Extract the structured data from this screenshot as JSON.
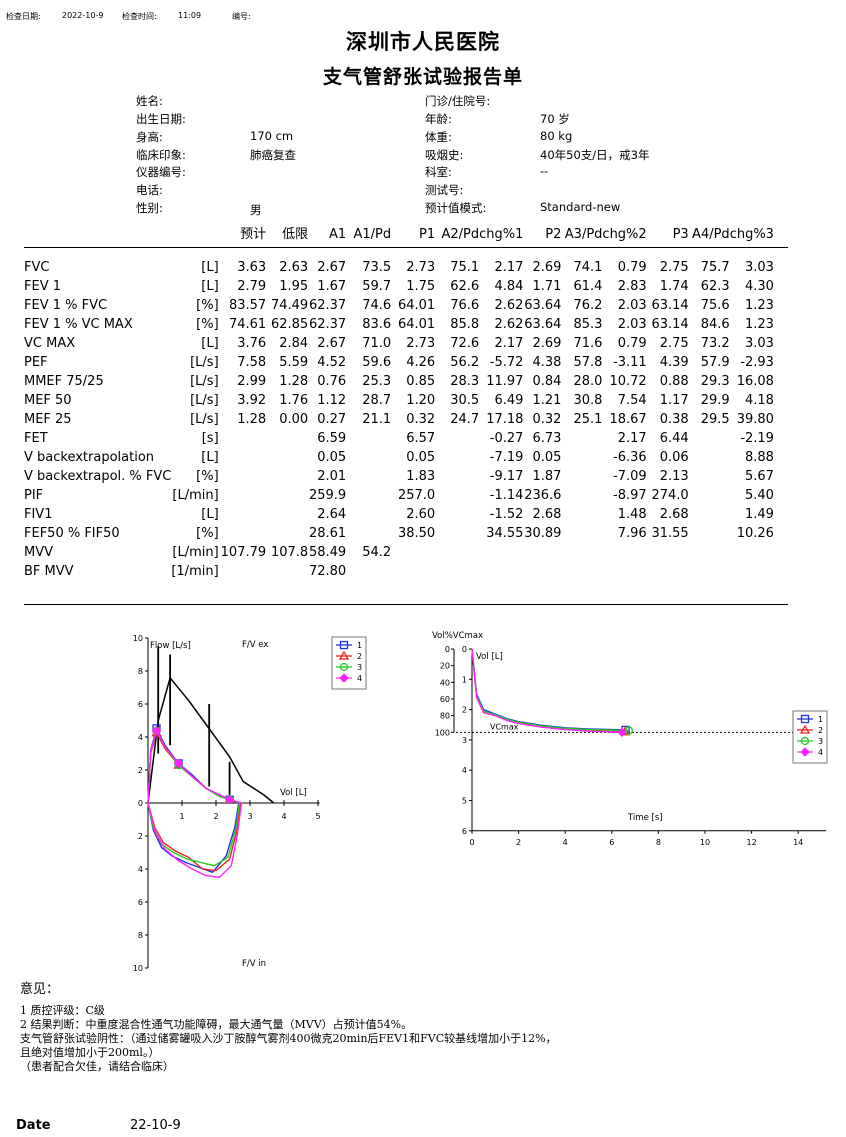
{
  "header": {
    "check_date_label": "检查日期:",
    "check_date": "2022-10-9",
    "check_time_label": "检查时间:",
    "check_time": "11:09",
    "number_label": "编号:"
  },
  "hospital": "深圳市人民医院",
  "report_title": "支气管舒张试验报告单",
  "patient": {
    "left": [
      {
        "label": "姓名:",
        "value": ""
      },
      {
        "label": "出生日期:",
        "value": ""
      },
      {
        "label": "身高:",
        "value": "170 cm"
      },
      {
        "label": "临床印象:",
        "value": "肺癌复查"
      },
      {
        "label": "仪器编号:",
        "value": ""
      },
      {
        "label": "电话:",
        "value": ""
      },
      {
        "label": "性别:",
        "value": "男"
      }
    ],
    "right": [
      {
        "label": "门诊/住院号:",
        "value": ""
      },
      {
        "label": "年龄:",
        "value": "70 岁"
      },
      {
        "label": "体重:",
        "value": "80 kg"
      },
      {
        "label": "吸烟史:",
        "value": "40年50支/日，戒3年"
      },
      {
        "label": "科室:",
        "value": "--"
      },
      {
        "label": "测试号:",
        "value": ""
      },
      {
        "label": "预计值模式:",
        "value": "Standard-new"
      }
    ]
  },
  "table": {
    "columns": [
      "预计",
      "低限",
      "A1",
      "A1/Pd",
      "P1",
      "A2/Pd",
      "chg%1",
      "P2",
      "A3/Pd",
      "chg%2",
      "P3",
      "A4/Pd",
      "chg%3"
    ],
    "rows": [
      {
        "name": "FVC",
        "unit": "[L]",
        "v": [
          "3.63",
          "2.63",
          "2.67",
          "73.5",
          "2.73",
          "75.1",
          "2.17",
          "2.69",
          "74.1",
          "0.79",
          "2.75",
          "75.7",
          "3.03"
        ]
      },
      {
        "name": "FEV 1",
        "unit": "[L]",
        "v": [
          "2.79",
          "1.95",
          "1.67",
          "59.7",
          "1.75",
          "62.6",
          "4.84",
          "1.71",
          "61.4",
          "2.83",
          "1.74",
          "62.3",
          "4.30"
        ]
      },
      {
        "name": "FEV 1 % FVC",
        "unit": "[%]",
        "v": [
          "83.57",
          "74.49",
          "62.37",
          "74.6",
          "64.01",
          "76.6",
          "2.62",
          "63.64",
          "76.2",
          "2.03",
          "63.14",
          "75.6",
          "1.23"
        ]
      },
      {
        "name": "FEV 1 % VC MAX",
        "unit": "[%]",
        "v": [
          "74.61",
          "62.85",
          "62.37",
          "83.6",
          "64.01",
          "85.8",
          "2.62",
          "63.64",
          "85.3",
          "2.03",
          "63.14",
          "84.6",
          "1.23"
        ]
      },
      {
        "name": "VC MAX",
        "unit": "[L]",
        "v": [
          "3.76",
          "2.84",
          "2.67",
          "71.0",
          "2.73",
          "72.6",
          "2.17",
          "2.69",
          "71.6",
          "0.79",
          "2.75",
          "73.2",
          "3.03"
        ]
      },
      {
        "name": "PEF",
        "unit": "[L/s]",
        "v": [
          "7.58",
          "5.59",
          "4.52",
          "59.6",
          "4.26",
          "56.2",
          "-5.72",
          "4.38",
          "57.8",
          "-3.11",
          "4.39",
          "57.9",
          "-2.93"
        ]
      },
      {
        "name": "MMEF 75/25",
        "unit": "[L/s]",
        "v": [
          "2.99",
          "1.28",
          "0.76",
          "25.3",
          "0.85",
          "28.3",
          "11.97",
          "0.84",
          "28.0",
          "10.72",
          "0.88",
          "29.3",
          "16.08"
        ]
      },
      {
        "name": "MEF 50",
        "unit": "[L/s]",
        "v": [
          "3.92",
          "1.76",
          "1.12",
          "28.7",
          "1.20",
          "30.5",
          "6.49",
          "1.21",
          "30.8",
          "7.54",
          "1.17",
          "29.9",
          "4.18"
        ]
      },
      {
        "name": "MEF 25",
        "unit": "[L/s]",
        "v": [
          "1.28",
          "0.00",
          "0.27",
          "21.1",
          "0.32",
          "24.7",
          "17.18",
          "0.32",
          "25.1",
          "18.67",
          "0.38",
          "29.5",
          "39.80"
        ]
      },
      {
        "name": "FET",
        "unit": "[s]",
        "v": [
          "",
          "",
          "6.59",
          "",
          "6.57",
          "",
          "-0.27",
          "6.73",
          "",
          "2.17",
          "6.44",
          "",
          "-2.19"
        ]
      },
      {
        "name": "V backextrapolation",
        "unit": "[L]",
        "v": [
          "",
          "",
          "0.05",
          "",
          "0.05",
          "",
          "-7.19",
          "0.05",
          "",
          "-6.36",
          "0.06",
          "",
          "8.88"
        ]
      },
      {
        "name": "V backextrapol. % FVC",
        "unit": "[%]",
        "v": [
          "",
          "",
          "2.01",
          "",
          "1.83",
          "",
          "-9.17",
          "1.87",
          "",
          "-7.09",
          "2.13",
          "",
          "5.67"
        ]
      },
      {
        "name": "PIF",
        "unit": "[L/min]",
        "v": [
          "",
          "",
          "259.9",
          "",
          "257.0",
          "",
          "-1.14",
          "236.6",
          "",
          "-8.97",
          "274.0",
          "",
          "5.40"
        ]
      },
      {
        "name": "FIV1",
        "unit": "[L]",
        "v": [
          "",
          "",
          "2.64",
          "",
          "2.60",
          "",
          "-1.52",
          "2.68",
          "",
          "1.48",
          "2.68",
          "",
          "1.49"
        ]
      },
      {
        "name": "FEF50 % FIF50",
        "unit": "[%]",
        "v": [
          "",
          "",
          "28.61",
          "",
          "38.50",
          "",
          "34.55",
          "30.89",
          "",
          "7.96",
          "31.55",
          "",
          "10.26"
        ]
      },
      {
        "name": "MVV",
        "unit": "[L/min]",
        "v": [
          "107.79",
          "107.8",
          "58.49",
          "54.2",
          "",
          "",
          "",
          "",
          "",
          "",
          "",
          "",
          ""
        ]
      },
      {
        "name": "BF MVV",
        "unit": "[1/min]",
        "v": [
          "",
          "",
          "72.80",
          "",
          "",
          "",
          "",
          "",
          "",
          "",
          "",
          "",
          ""
        ]
      }
    ]
  },
  "chart_data": [
    {
      "type": "line",
      "title": "F/V ex",
      "bottom_label": "F/V in",
      "xlabel": "Vol [L]",
      "ylabel": "Flow [L/s]",
      "xlim": [
        0,
        5
      ],
      "ylim": [
        -10,
        10
      ],
      "x_ticks": [
        "1",
        "2",
        "3",
        "4",
        "5"
      ],
      "y_ticks": [
        "10",
        "8",
        "6",
        "4",
        "2",
        "0",
        "2",
        "4",
        "6",
        "8",
        "10"
      ],
      "legend": [
        "1",
        "2",
        "3",
        "4"
      ],
      "colors": [
        "#2233dd",
        "#ee2222",
        "#22cc22",
        "#ff22ff"
      ],
      "predicted": {
        "x": [
          0.0,
          0.3,
          0.65,
          1.2,
          1.8,
          2.4,
          2.8,
          3.1,
          3.4,
          3.7
        ],
        "y": [
          0,
          5.0,
          7.58,
          6.2,
          4.5,
          2.8,
          1.3,
          0.9,
          0.5,
          0
        ]
      },
      "error_bars": [
        {
          "x": 0.3,
          "ymin": 3.0,
          "ymax": 9.5
        },
        {
          "x": 0.65,
          "ymin": 3.5,
          "ymax": 9.0
        },
        {
          "x": 1.8,
          "ymin": 1.0,
          "ymax": 6.0
        },
        {
          "x": 2.4,
          "ymin": 0.0,
          "ymax": 2.5
        }
      ],
      "expiratory": [
        {
          "name": "1",
          "x": [
            0,
            0.08,
            0.25,
            0.5,
            0.9,
            1.3,
            1.7,
            2.1,
            2.4,
            2.67
          ],
          "y": [
            0,
            3.2,
            4.52,
            3.5,
            2.4,
            1.7,
            0.9,
            0.5,
            0.2,
            0
          ]
        },
        {
          "name": "2",
          "x": [
            0,
            0.08,
            0.25,
            0.5,
            0.9,
            1.3,
            1.7,
            2.1,
            2.4,
            2.73
          ],
          "y": [
            0,
            3.0,
            4.26,
            3.3,
            2.3,
            1.6,
            0.9,
            0.4,
            0.2,
            0
          ]
        },
        {
          "name": "3",
          "x": [
            0,
            0.08,
            0.25,
            0.5,
            0.9,
            1.3,
            1.7,
            2.1,
            2.4,
            2.69
          ],
          "y": [
            0,
            3.1,
            4.38,
            3.4,
            2.3,
            1.6,
            0.9,
            0.4,
            0.2,
            0
          ]
        },
        {
          "name": "4",
          "x": [
            0,
            0.08,
            0.25,
            0.5,
            0.9,
            1.3,
            1.7,
            2.1,
            2.4,
            2.75
          ],
          "y": [
            0,
            3.1,
            4.39,
            3.4,
            2.4,
            1.6,
            0.9,
            0.5,
            0.2,
            0
          ]
        }
      ],
      "inspiratory": [
        {
          "name": "1",
          "x": [
            2.67,
            2.55,
            2.3,
            1.9,
            1.5,
            1.1,
            0.7,
            0.4,
            0.15,
            0
          ],
          "y": [
            0,
            -1.5,
            -3.2,
            -4.2,
            -3.9,
            -3.6,
            -3.2,
            -2.7,
            -1.6,
            0
          ]
        },
        {
          "name": "2",
          "x": [
            2.73,
            2.6,
            2.4,
            2.0,
            1.6,
            1.2,
            0.8,
            0.45,
            0.2,
            0
          ],
          "y": [
            0,
            -1.8,
            -3.4,
            -4.1,
            -4.0,
            -3.3,
            -2.9,
            -2.4,
            -1.5,
            0
          ]
        },
        {
          "name": "3",
          "x": [
            2.69,
            2.58,
            2.35,
            1.95,
            1.55,
            1.15,
            0.75,
            0.4,
            0.15,
            0
          ],
          "y": [
            0,
            -1.6,
            -3.3,
            -3.8,
            -3.6,
            -3.4,
            -3.0,
            -2.5,
            -1.5,
            0
          ]
        },
        {
          "name": "4",
          "x": [
            2.75,
            2.62,
            2.45,
            2.1,
            1.7,
            1.3,
            0.9,
            0.5,
            0.2,
            0
          ],
          "y": [
            0,
            -2.0,
            -3.8,
            -4.5,
            -4.4,
            -4.0,
            -3.5,
            -2.8,
            -1.7,
            0
          ]
        }
      ]
    },
    {
      "type": "line",
      "title": "Vol%VCmax",
      "xlabel": "Time [s]",
      "ylabel": "Vol [L]",
      "xlim": [
        0,
        15
      ],
      "ylim": [
        0,
        6
      ],
      "x_ticks": [
        "0",
        "2",
        "4",
        "6",
        "8",
        "10",
        "12",
        "14"
      ],
      "y_ticks_left": [
        "0",
        "20",
        "40",
        "60",
        "80",
        "100"
      ],
      "y_ticks_right": [
        "0",
        "1",
        "2",
        "3",
        "4",
        "5",
        "6"
      ],
      "reference_label": "VCmax",
      "reference_y": 2.75,
      "legend": [
        "1",
        "2",
        "3",
        "4"
      ],
      "colors": [
        "#2233dd",
        "#ee2222",
        "#22cc22",
        "#ff22ff"
      ],
      "series": [
        {
          "name": "1",
          "t": [
            0,
            0.2,
            0.5,
            1,
            1.5,
            2,
            3,
            4,
            5,
            6,
            6.59
          ],
          "v": [
            0,
            1.5,
            2.0,
            2.15,
            2.3,
            2.4,
            2.52,
            2.6,
            2.64,
            2.66,
            2.67
          ]
        },
        {
          "name": "2",
          "t": [
            0,
            0.2,
            0.5,
            1,
            1.5,
            2,
            3,
            4,
            5,
            6,
            6.57
          ],
          "v": [
            0,
            1.6,
            2.1,
            2.2,
            2.35,
            2.45,
            2.57,
            2.65,
            2.7,
            2.72,
            2.73
          ]
        },
        {
          "name": "3",
          "t": [
            0,
            0.2,
            0.5,
            1,
            1.5,
            2,
            3,
            4,
            5,
            6,
            6.73
          ],
          "v": [
            0,
            1.55,
            2.05,
            2.17,
            2.32,
            2.42,
            2.54,
            2.62,
            2.66,
            2.68,
            2.69
          ]
        },
        {
          "name": "4",
          "t": [
            0,
            0.2,
            0.5,
            1,
            1.5,
            2,
            3,
            4,
            5,
            6,
            6.44
          ],
          "v": [
            0,
            1.6,
            2.1,
            2.2,
            2.36,
            2.46,
            2.58,
            2.66,
            2.71,
            2.74,
            2.75
          ]
        }
      ]
    }
  ],
  "opinion": {
    "heading": "意见：",
    "lines": [
      "1 质控评级：C级",
      "2 结果判断：中重度混合性通气功能障碍，最大通气量（MVV）占预计值54%。",
      "支气管舒张试验阴性：（通过储雾罐吸入沙丁胺醇气雾剂400微克20min后FEV1和FVC较基线增加小于12%，",
      "且绝对值增加小于200ml。）",
      "（患者配合欠佳，请结合临床）"
    ]
  },
  "footer": {
    "date_label": "Date",
    "date_value": "22-10-9"
  }
}
